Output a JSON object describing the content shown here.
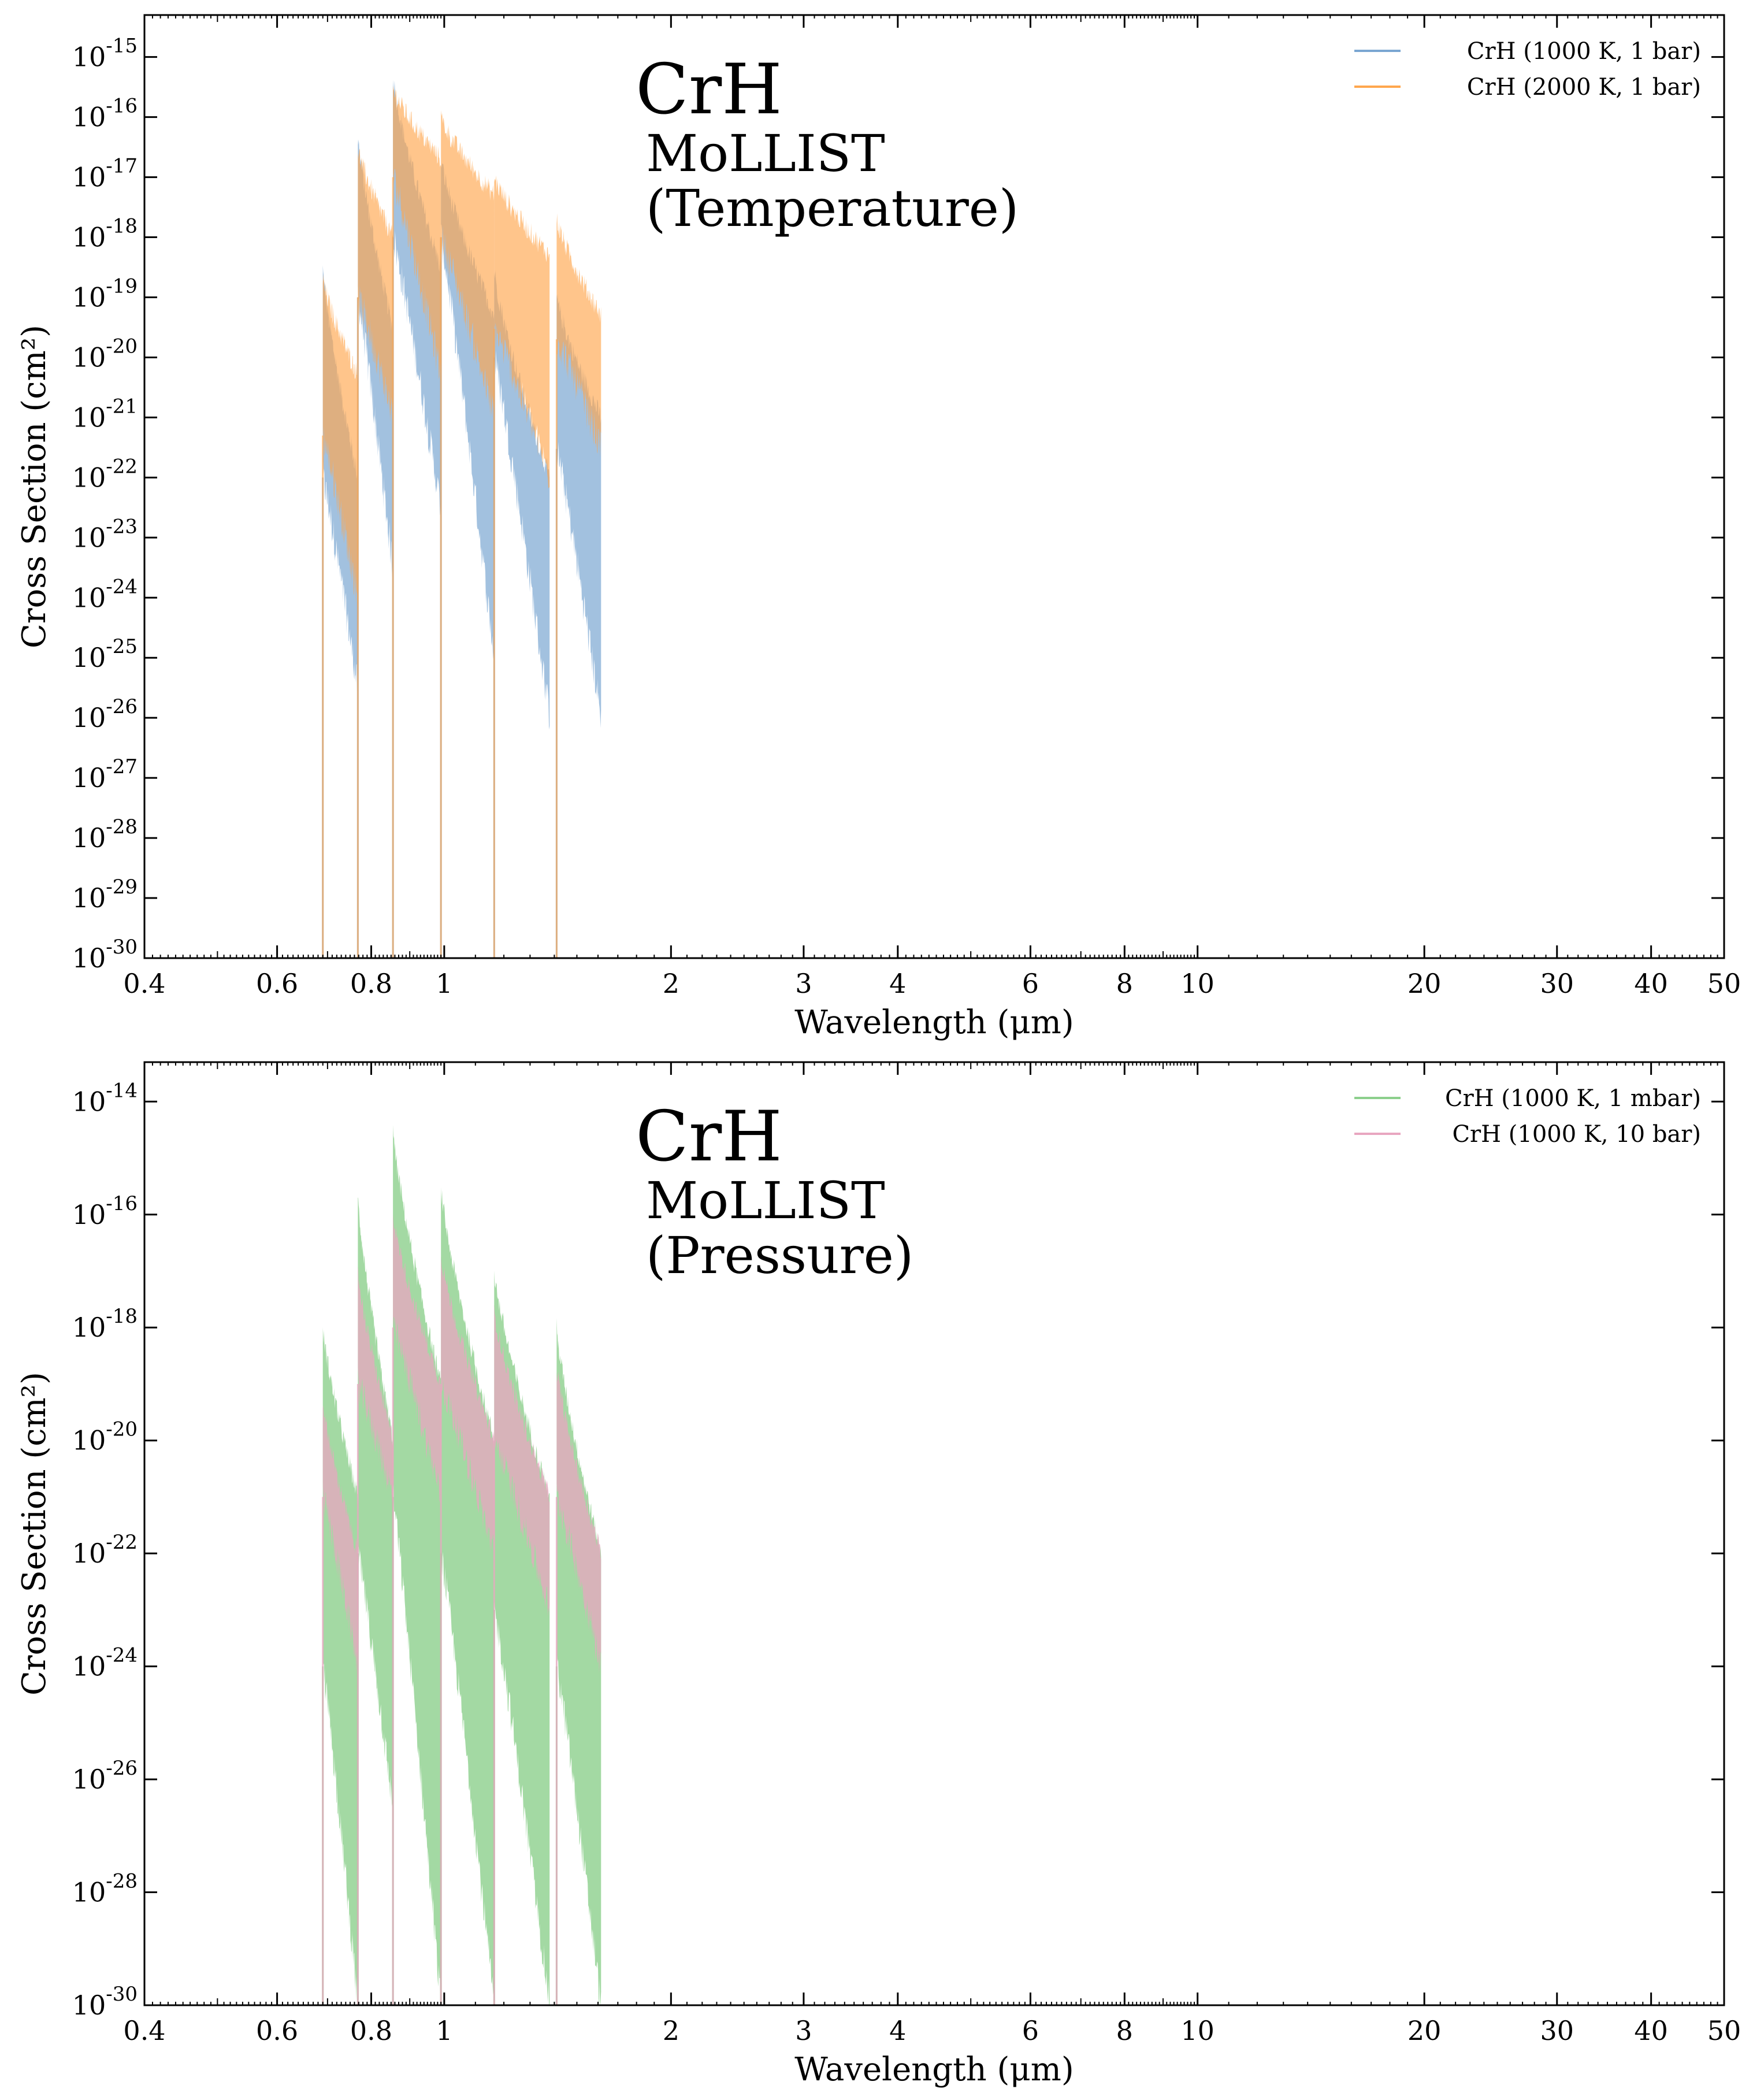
{
  "chart_data": [
    {
      "type": "area",
      "title": "CrH",
      "annotations": [
        "MoLLIST",
        "(Temperature)"
      ],
      "xlabel": "Wavelength (μm)",
      "ylabel": "Cross Section (cm²)",
      "x_scale": "log",
      "y_scale": "log",
      "xlim": [
        0.4,
        50
      ],
      "ylim": [
        1e-30,
        5e-15
      ],
      "x_ticks": [
        {
          "value": 0.4,
          "label": "0.4"
        },
        {
          "value": 0.6,
          "label": "0.6"
        },
        {
          "value": 0.8,
          "label": "0.8"
        },
        {
          "value": 1,
          "label": "1"
        },
        {
          "value": 2,
          "label": "2"
        },
        {
          "value": 3,
          "label": "3"
        },
        {
          "value": 4,
          "label": "4"
        },
        {
          "value": 6,
          "label": "6"
        },
        {
          "value": 8,
          "label": "8"
        },
        {
          "value": 10,
          "label": "10"
        },
        {
          "value": 20,
          "label": "20"
        },
        {
          "value": 30,
          "label": "30"
        },
        {
          "value": 40,
          "label": "40"
        },
        {
          "value": 50,
          "label": "50"
        }
      ],
      "y_ticks": [
        {
          "exp": -15,
          "base": "10",
          "sup": "-15"
        },
        {
          "exp": -16,
          "base": "10",
          "sup": "-16"
        },
        {
          "exp": -17,
          "base": "10",
          "sup": "-17"
        },
        {
          "exp": -18,
          "base": "10",
          "sup": "-18"
        },
        {
          "exp": -19,
          "base": "10",
          "sup": "-19"
        },
        {
          "exp": -20,
          "base": "10",
          "sup": "-20"
        },
        {
          "exp": -21,
          "base": "10",
          "sup": "-21"
        },
        {
          "exp": -22,
          "base": "10",
          "sup": "-22"
        },
        {
          "exp": -23,
          "base": "10",
          "sup": "-23"
        },
        {
          "exp": -24,
          "base": "10",
          "sup": "-24"
        },
        {
          "exp": -25,
          "base": "10",
          "sup": "-25"
        },
        {
          "exp": -26,
          "base": "10",
          "sup": "-26"
        },
        {
          "exp": -27,
          "base": "10",
          "sup": "-27"
        },
        {
          "exp": -28,
          "base": "10",
          "sup": "-28"
        },
        {
          "exp": -29,
          "base": "10",
          "sup": "-29"
        },
        {
          "exp": -30,
          "base": "10",
          "sup": "-30"
        }
      ],
      "legend": "top-right",
      "grid": false,
      "series": [
        {
          "name": "CrH (1000 K, 1 bar)",
          "color": "#7aa6d1",
          "opacity": 0.7,
          "bands": [
            {
              "x0": 0.69,
              "x1": 0.768,
              "y_hi_start": 3e-19,
              "y_hi_end": 1e-22,
              "y_lo_start": 1e-22,
              "y_lo_end": 3e-26
            },
            {
              "x0": 0.768,
              "x1": 0.855,
              "y_hi_start": 5e-17,
              "y_hi_end": 3e-20,
              "y_lo_start": 1e-19,
              "y_lo_end": 3e-24
            },
            {
              "x0": 0.855,
              "x1": 0.99,
              "y_hi_start": 5e-16,
              "y_hi_end": 3e-19,
              "y_lo_start": 1e-18,
              "y_lo_end": 3e-23
            },
            {
              "x0": 0.99,
              "x1": 1.165,
              "y_hi_start": 2e-17,
              "y_hi_end": 5e-20,
              "y_lo_start": 1e-18,
              "y_lo_end": 1e-25
            },
            {
              "x0": 1.165,
              "x1": 1.38,
              "y_hi_start": 3e-19,
              "y_hi_end": 1e-22,
              "y_lo_start": 1e-20,
              "y_lo_end": 1e-26
            },
            {
              "x0": 1.41,
              "x1": 1.615,
              "y_hi_start": 1e-19,
              "y_hi_end": 1e-21,
              "y_lo_start": 3e-22,
              "y_lo_end": 1e-26
            }
          ]
        },
        {
          "name": "CrH (2000 K, 1 bar)",
          "color": "#ffa64d",
          "opacity": 0.65,
          "bands": [
            {
              "x0": 0.69,
              "x1": 0.768,
              "y_hi_start": 2e-19,
              "y_hi_end": 5e-21,
              "y_lo_start": 5e-22,
              "y_lo_end": 1e-24
            },
            {
              "x0": 0.768,
              "x1": 0.855,
              "y_hi_start": 3e-17,
              "y_hi_end": 1e-18,
              "y_lo_start": 1e-19,
              "y_lo_end": 1e-21
            },
            {
              "x0": 0.855,
              "x1": 0.99,
              "y_hi_start": 3e-16,
              "y_hi_end": 2e-17,
              "y_lo_start": 1e-17,
              "y_lo_end": 5e-21
            },
            {
              "x0": 0.99,
              "x1": 1.165,
              "y_hi_start": 1e-16,
              "y_hi_end": 5e-18,
              "y_lo_start": 1e-18,
              "y_lo_end": 1e-21
            },
            {
              "x0": 1.165,
              "x1": 1.38,
              "y_hi_start": 1e-17,
              "y_hi_end": 5e-19,
              "y_lo_start": 3e-20,
              "y_lo_end": 1e-22
            },
            {
              "x0": 1.41,
              "x1": 1.615,
              "y_hi_start": 2e-18,
              "y_hi_end": 5e-20,
              "y_lo_start": 2e-20,
              "y_lo_end": 3e-22
            }
          ]
        }
      ]
    },
    {
      "type": "area",
      "title": "CrH",
      "annotations": [
        "MoLLIST",
        "(Pressure)"
      ],
      "xlabel": "Wavelength (μm)",
      "ylabel": "Cross Section (cm²)",
      "x_scale": "log",
      "y_scale": "log",
      "xlim": [
        0.4,
        50
      ],
      "ylim": [
        1e-30,
        5e-14
      ],
      "x_ticks": [
        {
          "value": 0.4,
          "label": "0.4"
        },
        {
          "value": 0.6,
          "label": "0.6"
        },
        {
          "value": 0.8,
          "label": "0.8"
        },
        {
          "value": 1,
          "label": "1"
        },
        {
          "value": 2,
          "label": "2"
        },
        {
          "value": 3,
          "label": "3"
        },
        {
          "value": 4,
          "label": "4"
        },
        {
          "value": 6,
          "label": "6"
        },
        {
          "value": 8,
          "label": "8"
        },
        {
          "value": 10,
          "label": "10"
        },
        {
          "value": 20,
          "label": "20"
        },
        {
          "value": 30,
          "label": "30"
        },
        {
          "value": 40,
          "label": "40"
        },
        {
          "value": 50,
          "label": "50"
        }
      ],
      "y_ticks": [
        {
          "exp": -14,
          "base": "10",
          "sup": "-14"
        },
        {
          "exp": -16,
          "base": "10",
          "sup": "-16"
        },
        {
          "exp": -18,
          "base": "10",
          "sup": "-18"
        },
        {
          "exp": -20,
          "base": "10",
          "sup": "-20"
        },
        {
          "exp": -22,
          "base": "10",
          "sup": "-22"
        },
        {
          "exp": -24,
          "base": "10",
          "sup": "-24"
        },
        {
          "exp": -26,
          "base": "10",
          "sup": "-26"
        },
        {
          "exp": -28,
          "base": "10",
          "sup": "-28"
        },
        {
          "exp": -30,
          "base": "10",
          "sup": "-30"
        }
      ],
      "legend": "top-right",
      "grid": false,
      "series": [
        {
          "name": "CrH (1000 K, 1 mbar)",
          "color": "#8ccf8c",
          "opacity": 0.8,
          "bands": [
            {
              "x0": 0.69,
              "x1": 0.768,
              "y_hi_start": 1e-18,
              "y_hi_end": 1e-21,
              "y_lo_start": 1e-24,
              "y_lo_end": 1e-30
            },
            {
              "x0": 0.768,
              "x1": 0.855,
              "y_hi_start": 2e-16,
              "y_hi_end": 1e-20,
              "y_lo_start": 1e-22,
              "y_lo_end": 3e-27
            },
            {
              "x0": 0.855,
              "x1": 0.99,
              "y_hi_start": 3e-15,
              "y_hi_end": 1e-19,
              "y_lo_start": 1e-21,
              "y_lo_end": 1e-30
            },
            {
              "x0": 0.99,
              "x1": 1.165,
              "y_hi_start": 3e-16,
              "y_hi_end": 1e-20,
              "y_lo_start": 1e-22,
              "y_lo_end": 1e-30
            },
            {
              "x0": 1.165,
              "x1": 1.38,
              "y_hi_start": 1e-17,
              "y_hi_end": 1e-21,
              "y_lo_start": 1e-23,
              "y_lo_end": 1e-30
            },
            {
              "x0": 1.41,
              "x1": 1.615,
              "y_hi_start": 1e-18,
              "y_hi_end": 1e-22,
              "y_lo_start": 1e-24,
              "y_lo_end": 1e-30
            }
          ]
        },
        {
          "name": "CrH (1000 K, 10 bar)",
          "color": "#e8a6c0",
          "opacity": 0.75,
          "bands": [
            {
              "x0": 0.69,
              "x1": 0.768,
              "y_hi_start": 5e-20,
              "y_hi_end": 1e-22,
              "y_lo_start": 1e-21,
              "y_lo_end": 1e-24
            },
            {
              "x0": 0.768,
              "x1": 0.855,
              "y_hi_start": 1e-17,
              "y_hi_end": 1e-20,
              "y_lo_start": 1e-19,
              "y_lo_end": 1e-21
            },
            {
              "x0": 0.855,
              "x1": 0.99,
              "y_hi_start": 1e-16,
              "y_hi_end": 1e-19,
              "y_lo_start": 1e-18,
              "y_lo_end": 1e-21
            },
            {
              "x0": 0.99,
              "x1": 1.165,
              "y_hi_start": 2e-17,
              "y_hi_end": 1e-20,
              "y_lo_start": 1e-19,
              "y_lo_end": 1e-22
            },
            {
              "x0": 1.165,
              "x1": 1.38,
              "y_hi_start": 2e-18,
              "y_hi_end": 1e-21,
              "y_lo_start": 1e-20,
              "y_lo_end": 1e-23
            },
            {
              "x0": 1.41,
              "x1": 1.615,
              "y_hi_start": 2e-19,
              "y_hi_end": 1e-22,
              "y_lo_start": 1e-21,
              "y_lo_end": 1e-24
            }
          ]
        }
      ]
    }
  ]
}
